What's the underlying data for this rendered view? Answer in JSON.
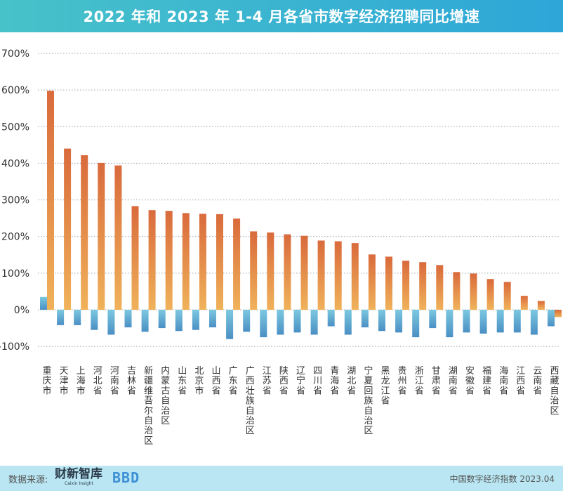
{
  "header": {
    "title": "2022 年和 2023 年 1-4 月各省市数字经济招聘同比增速"
  },
  "footer": {
    "source_label": "数据来源:",
    "logo_text": "财新智库",
    "logo_subtext": "Caixin Insight",
    "logo2_text": "BBD",
    "right_text": "中国数字经济指数 2023.04"
  },
  "colors": {
    "bar_2022_top": "#d96a3c",
    "bar_2022_bottom": "#f0b25a",
    "bar_2023_top": "#7cc8e0",
    "bar_2023_bottom": "#4a8fc4",
    "grid": "#9aa3ad"
  },
  "chart_data": {
    "type": "bar",
    "y_tick_labels": [
      "700%",
      "600%",
      "500%",
      "400%",
      "300%",
      "200%",
      "100%",
      "0%",
      "-100%"
    ],
    "ylim": [
      -100,
      700
    ],
    "grid": true,
    "legend": "none",
    "categories": [
      "重庆市",
      "天津市",
      "上海市",
      "河北省",
      "河南省",
      "吉林省",
      "新疆维吾尔自治区",
      "内蒙古自治区",
      "山东省",
      "北京市",
      "山西省",
      "广东省",
      "广西壮族自治区",
      "江苏省",
      "陕西省",
      "辽宁省",
      "四川省",
      "青海省",
      "湖北省",
      "宁夏回族自治区",
      "黑龙江省",
      "贵州省",
      "浙江省",
      "甘肃省",
      "湖南省",
      "安徽省",
      "福建省",
      "海南省",
      "江西省",
      "云南省",
      "西藏自治区"
    ],
    "series": [
      {
        "values": [
          598,
          440,
          422,
          401,
          394,
          283,
          272,
          270,
          264,
          262,
          261,
          249,
          214,
          211,
          206,
          202,
          189,
          187,
          182,
          151,
          145,
          134,
          130,
          122,
          103,
          99,
          84,
          76,
          38,
          24,
          -20
        ]
      },
      {
        "values": [
          35,
          -42,
          -42,
          -55,
          -68,
          -48,
          -60,
          -50,
          -58,
          -55,
          -48,
          -80,
          -60,
          -75,
          -68,
          -62,
          -68,
          -45,
          -68,
          -48,
          -58,
          -62,
          -75,
          -50,
          -75,
          -62,
          -65,
          -62,
          -62,
          -68,
          -45
        ]
      }
    ]
  }
}
